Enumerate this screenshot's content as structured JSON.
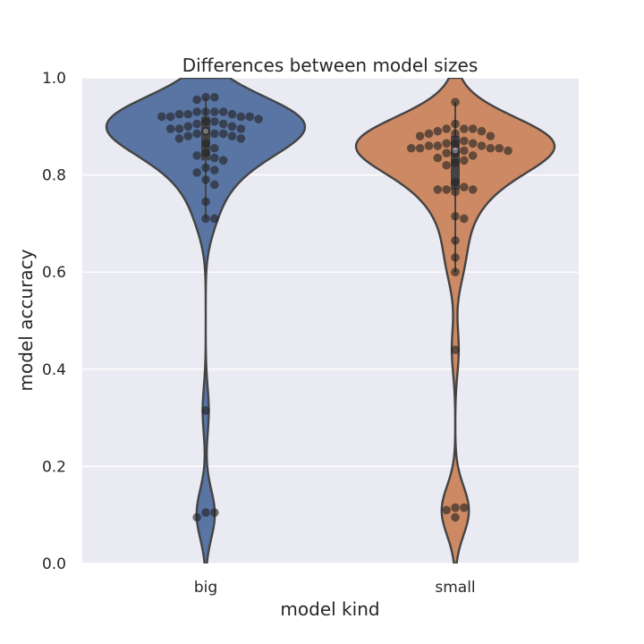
{
  "chart_data": {
    "type": "violin",
    "title": "Differences between model sizes",
    "xlabel": "model kind",
    "ylabel": "model accuracy",
    "ylim": [
      0.0,
      1.0
    ],
    "yticks": [
      "0.0",
      "0.2",
      "0.4",
      "0.6",
      "0.8",
      "1.0"
    ],
    "categories": [
      "big",
      "small"
    ],
    "grid": true,
    "style": "seaborn darkgrid with swarm overlay",
    "colors": {
      "background": "#eaeaf2",
      "grid": "#ffffff",
      "big": "#5975a4",
      "small": "#cc8963",
      "outline": "#444444",
      "points": "#222222"
    },
    "series": [
      {
        "name": "big",
        "quartiles": {
          "q1": 0.83,
          "median": 0.89,
          "q3": 0.92,
          "whisker_low": 0.71,
          "whisker_high": 0.96
        },
        "points": [
          0.93,
          0.925,
          0.91,
          0.92,
          0.905,
          0.915,
          0.93,
          0.92,
          0.96,
          0.955,
          0.96,
          0.925,
          0.93,
          0.92,
          0.905,
          0.91,
          0.92,
          0.925,
          0.93,
          0.895,
          0.885,
          0.88,
          0.885,
          0.875,
          0.9,
          0.895,
          0.89,
          0.9,
          0.875,
          0.88,
          0.885,
          0.895,
          0.865,
          0.855,
          0.845,
          0.84,
          0.835,
          0.83,
          0.81,
          0.815,
          0.805,
          0.79,
          0.78,
          0.745,
          0.71,
          0.71,
          0.315,
          0.105,
          0.095,
          0.105
        ]
      },
      {
        "name": "small",
        "quartiles": {
          "q1": 0.77,
          "median": 0.85,
          "q3": 0.88,
          "whisker_low": 0.6,
          "whisker_high": 0.95
        },
        "points": [
          0.865,
          0.86,
          0.855,
          0.855,
          0.85,
          0.845,
          0.84,
          0.835,
          0.845,
          0.85,
          0.855,
          0.855,
          0.86,
          0.86,
          0.865,
          0.895,
          0.885,
          0.88,
          0.905,
          0.895,
          0.89,
          0.88,
          0.885,
          0.89,
          0.895,
          0.95,
          0.87,
          0.865,
          0.83,
          0.825,
          0.82,
          0.785,
          0.775,
          0.77,
          0.77,
          0.765,
          0.77,
          0.715,
          0.71,
          0.665,
          0.63,
          0.6,
          0.44,
          0.11,
          0.095,
          0.115,
          0.115
        ]
      }
    ]
  }
}
